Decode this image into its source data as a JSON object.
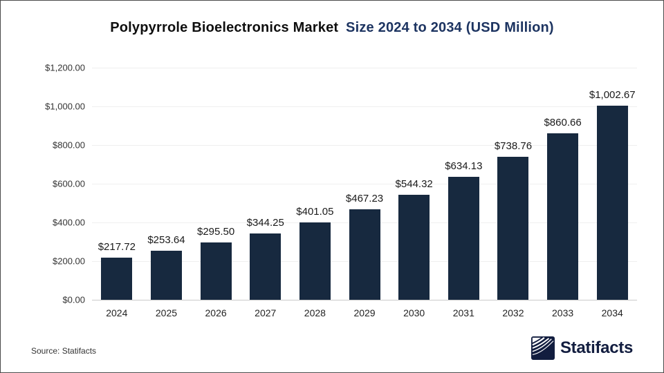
{
  "title": {
    "part1": "Polypyrrole Bioelectronics Market",
    "part2": "Size 2024 to 2034 (USD Million)"
  },
  "chart_data": {
    "type": "bar",
    "title": "Polypyrrole Bioelectronics Market Size 2024 to 2034 (USD Million)",
    "categories": [
      "2024",
      "2025",
      "2026",
      "2027",
      "2028",
      "2029",
      "2030",
      "2031",
      "2032",
      "2033",
      "2034"
    ],
    "values": [
      217.72,
      253.64,
      295.5,
      344.25,
      401.05,
      467.23,
      544.32,
      634.13,
      738.76,
      860.66,
      1002.67
    ],
    "bar_labels": [
      "$217.72",
      "$253.64",
      "$295.50",
      "$344.25",
      "$401.05",
      "$467.23",
      "$544.32",
      "$634.13",
      "$738.76",
      "$860.66",
      "$1,002.67"
    ],
    "xlabel": "",
    "ylabel": "",
    "ylim": [
      0,
      1200
    ],
    "y_ticks": [
      "$1,200.00",
      "$1,000.00",
      "$800.00",
      "$600.00",
      "$400.00",
      "$200.00",
      "$0.00"
    ],
    "grid": true,
    "legend": "none",
    "bar_color": "#17293F"
  },
  "footer": {
    "source": "Source: Statifacts",
    "brand": "Statifacts"
  },
  "colors": {
    "bar": "#17293F",
    "title_main": "#0f0f0f",
    "title_accent": "#1d3461",
    "brand_navy": "#121D3F",
    "gridline": "#efefef",
    "axis_line": "#c9c9c9"
  }
}
